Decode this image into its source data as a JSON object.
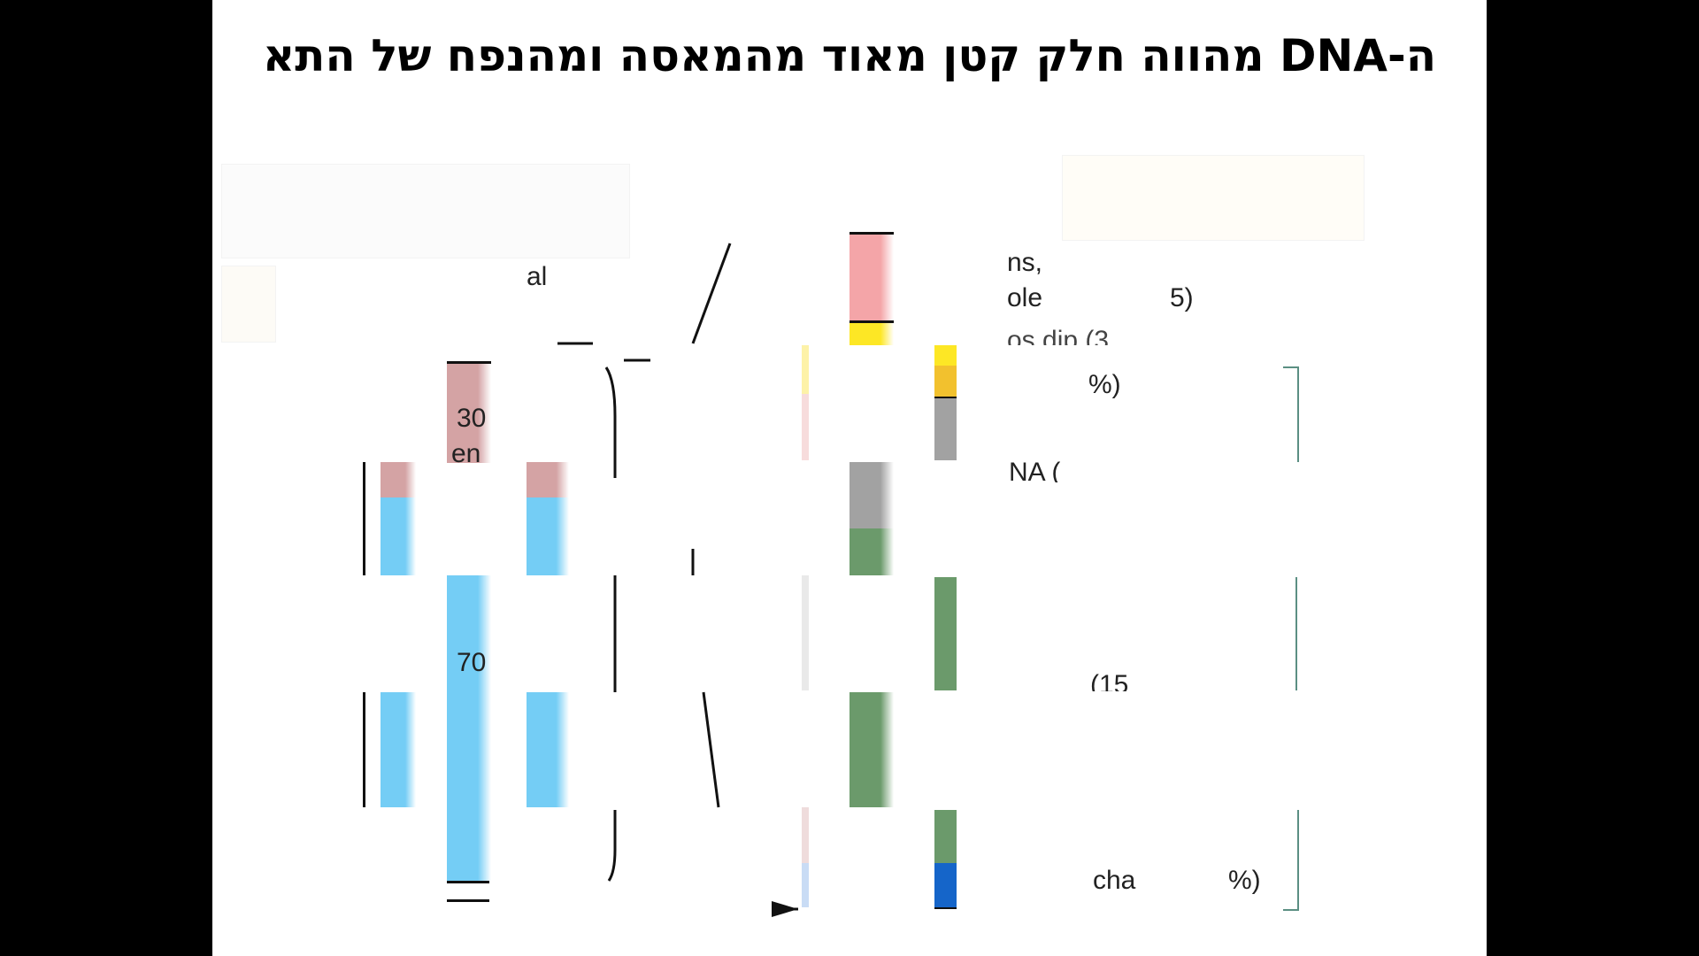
{
  "slide": {
    "title": "ה-DNA מהווה חלק קטן מאוד מהמאסה ומהנפח של התא"
  },
  "figure": {
    "fragments": {
      "al": "al",
      "ns": "ns,",
      "ole": "ole",
      "paren_close_1": "5)",
      "os_dip": "os   dip   (3",
      "percent_close": "%)",
      "pct_30": "30",
      "en": "en",
      "na": "NA (",
      "pct_70": "70",
      "paren_15": "(15",
      "cha": "cha",
      "percent_close_2": "%)"
    },
    "colors": {
      "pink": "#f4a5a8",
      "dusty_pink": "#d4a3a4",
      "yellow": "#fde725",
      "amber": "#f2c12e",
      "gray": "#a2a2a2",
      "green": "#6b9a6b",
      "blue": "#1565c9",
      "sky_blue": "#74cdf5",
      "bracket_teal": "#5b8f83"
    }
  }
}
